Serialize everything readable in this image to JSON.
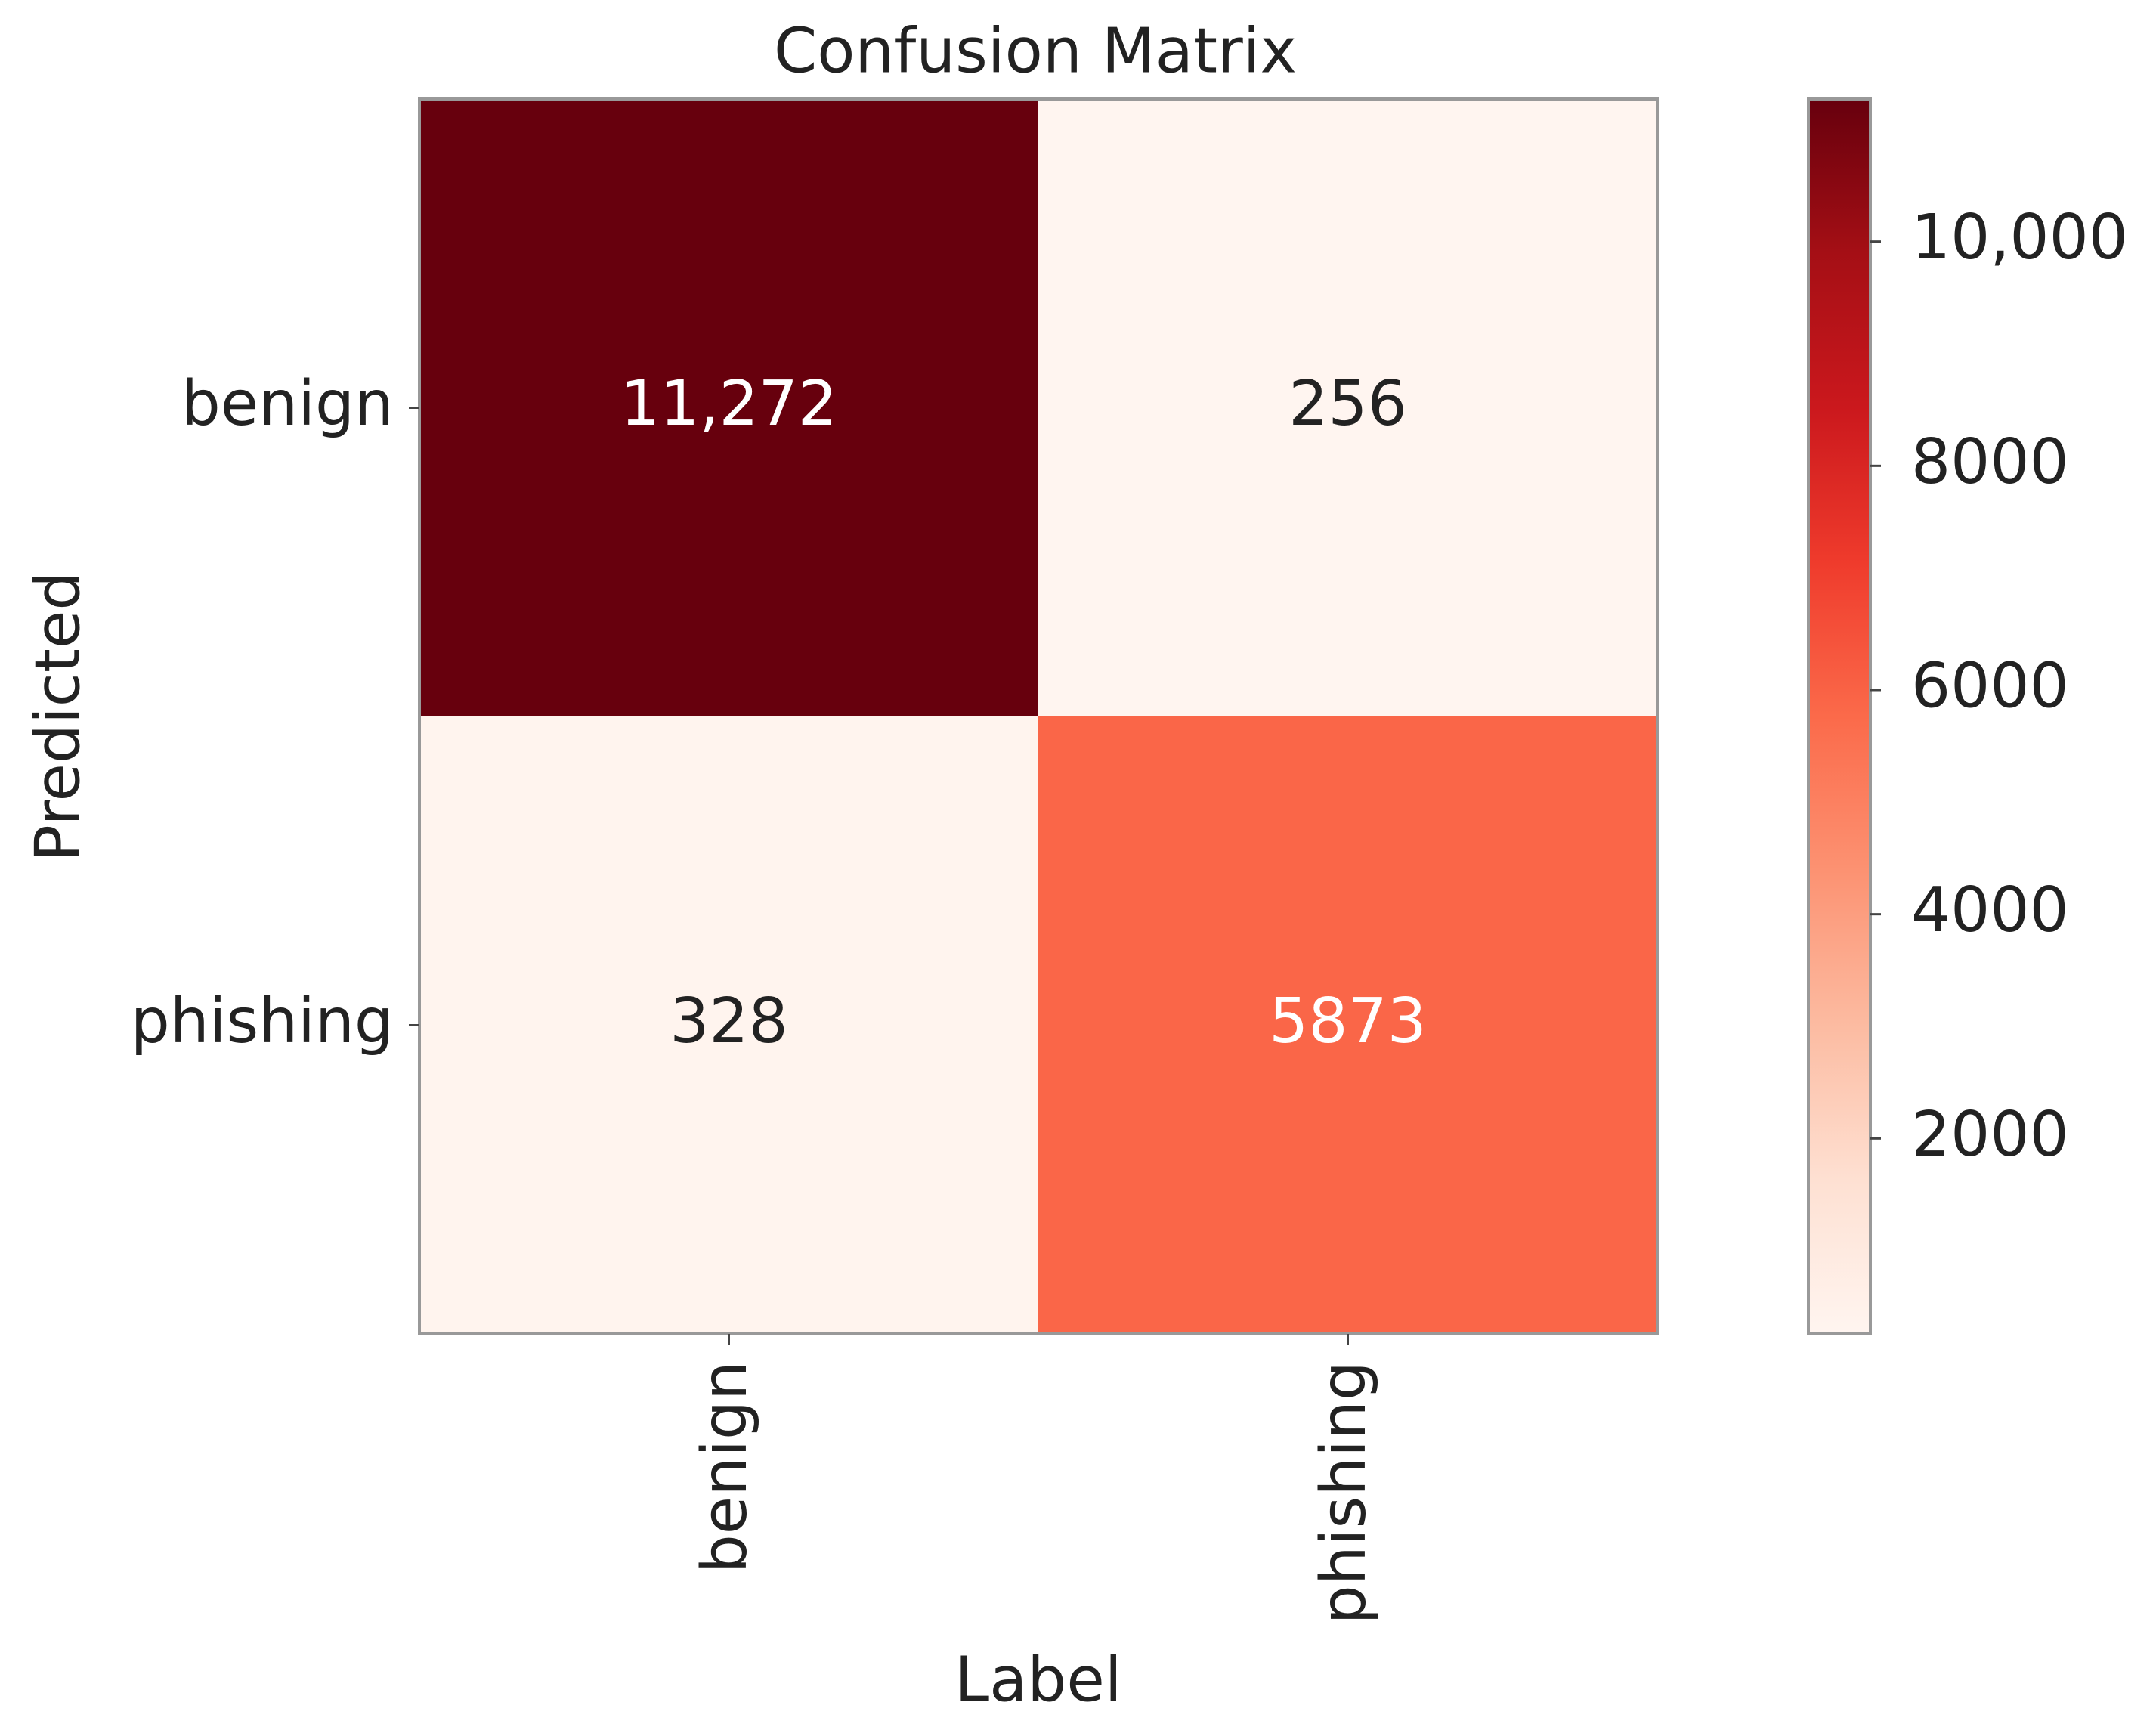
{
  "chart_data": {
    "type": "heatmap",
    "title": "Confusion Matrix",
    "xlabel": "Label",
    "ylabel": "Predicted",
    "x_categories": [
      "benign",
      "phishing"
    ],
    "y_categories": [
      "benign",
      "phishing"
    ],
    "values": [
      [
        11272,
        256
      ],
      [
        328,
        5873
      ]
    ],
    "value_labels": [
      [
        "11,272",
        "256"
      ],
      [
        "328",
        "5873"
      ]
    ],
    "colormap": "Reds",
    "zlim": [
      256,
      11272
    ],
    "zticks": [
      2000,
      4000,
      6000,
      8000,
      {
        "value": 10000,
        "label": "10,000"
      }
    ]
  }
}
